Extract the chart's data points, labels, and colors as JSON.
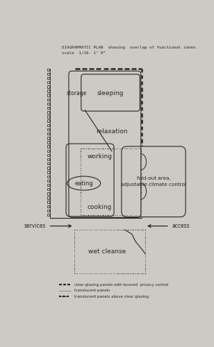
{
  "bg_color": "#cccac5",
  "title_line1": "DIAGRAMMATIC PLAN  showing  overlap of functional zones",
  "title_line2": "scale  1/16· 1’ 0”",
  "legend_items": [
    "clear glazing panels with louvred  privacy control",
    "translucent panels",
    "translucent panels above clear glazing"
  ],
  "line_color": "#2a2520",
  "text_color": "#2a2520",
  "label_storage": "storage",
  "label_sleeping": "sleeping",
  "label_relaxation": "relaxation",
  "label_working": "working",
  "label_eating": "eating",
  "label_cooking": "cooking",
  "label_foldout1": "fold-out area,",
  "label_foldout2": "adjustable climate control",
  "label_services": "services",
  "label_access": "access",
  "label_wet": "wet cleanse"
}
